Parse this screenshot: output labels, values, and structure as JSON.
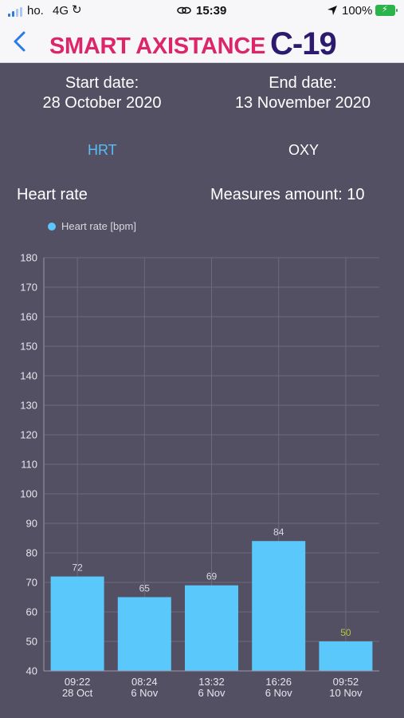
{
  "status_bar": {
    "carrier": "ho.",
    "network": "4G",
    "time": "15:39",
    "battery": "100%"
  },
  "header": {
    "logo_main": "SMART AXISTANCE",
    "logo_suffix": "C-19",
    "back_icon": "chevron-left-icon"
  },
  "dates": {
    "start_label": "Start date:",
    "start_value": "28 October 2020",
    "end_label": "End date:",
    "end_value": "13 November 2020"
  },
  "tabs": [
    {
      "label": "HRT",
      "active": true
    },
    {
      "label": "OXY",
      "active": false
    }
  ],
  "chart_section": {
    "title": "Heart rate",
    "measures": "Measures amount: 10"
  },
  "colors": {
    "background": "#545064",
    "bar": "#5ac8fa",
    "active_tab": "#56bdf6",
    "low_label": "#b5c23a",
    "logo_pink": "#dc2667",
    "logo_navy": "#2b1a6e"
  },
  "chart_data": {
    "type": "bar",
    "title": "",
    "xlabel": "",
    "ylabel": "",
    "legend": "Heart rate [bpm]",
    "legend_position": "top-left",
    "grid": true,
    "ylim": [
      40,
      180
    ],
    "yticks": [
      40,
      50,
      60,
      70,
      80,
      90,
      100,
      110,
      120,
      130,
      140,
      150,
      160,
      170,
      180
    ],
    "categories": [
      [
        "09:22",
        "28 Oct"
      ],
      [
        "08:24",
        "6 Nov"
      ],
      [
        "13:32",
        "6 Nov"
      ],
      [
        "16:26",
        "6 Nov"
      ],
      [
        "09:52",
        "10 Nov"
      ]
    ],
    "series": [
      {
        "name": "Heart rate [bpm]",
        "values": [
          72,
          65,
          69,
          84,
          50
        ]
      }
    ],
    "highlight_labels": [
      4
    ]
  }
}
